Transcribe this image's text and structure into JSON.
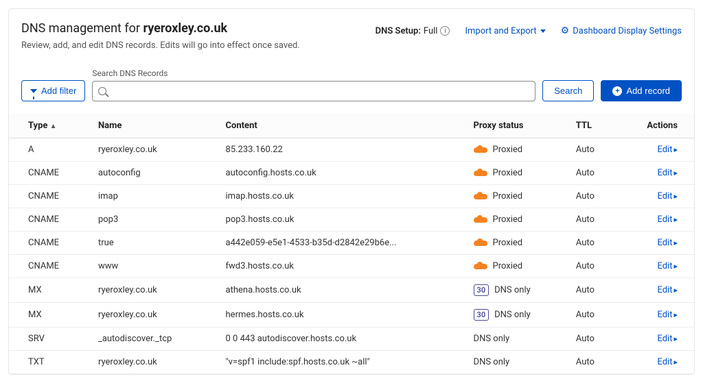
{
  "header": {
    "title_prefix": "DNS management for ",
    "domain": "ryeroxley.co.uk",
    "subtitle": "Review, add, and edit DNS records. Edits will go into effect once saved.",
    "dns_setup_label": "DNS Setup:",
    "dns_setup_value": "Full",
    "import_export": "Import and Export",
    "dashboard_settings": "Dashboard Display Settings"
  },
  "controls": {
    "add_filter": "Add filter",
    "search_label": "Search DNS Records",
    "search_btn": "Search",
    "add_record": "Add record"
  },
  "table": {
    "columns": {
      "type": "Type",
      "name": "Name",
      "content": "Content",
      "proxy": "Proxy status",
      "ttl": "TTL",
      "actions": "Actions"
    },
    "edit_label": "Edit",
    "proxy_labels": {
      "proxied": "Proxied",
      "dns_only": "DNS only"
    },
    "rows": [
      {
        "type": "A",
        "name": "ryeroxley.co.uk",
        "content": "85.233.160.22",
        "proxy": "proxied",
        "ttl": "Auto"
      },
      {
        "type": "CNAME",
        "name": "autoconfig",
        "content": "autoconfig.hosts.co.uk",
        "proxy": "proxied",
        "ttl": "Auto"
      },
      {
        "type": "CNAME",
        "name": "imap",
        "content": "imap.hosts.co.uk",
        "proxy": "proxied",
        "ttl": "Auto"
      },
      {
        "type": "CNAME",
        "name": "pop3",
        "content": "pop3.hosts.co.uk",
        "proxy": "proxied",
        "ttl": "Auto"
      },
      {
        "type": "CNAME",
        "name": "true",
        "content": "a442e059-e5e1-4533-b35d-d2842e29b6e...",
        "proxy": "proxied",
        "ttl": "Auto"
      },
      {
        "type": "CNAME",
        "name": "www",
        "content": "fwd3.hosts.co.uk",
        "proxy": "proxied",
        "ttl": "Auto"
      },
      {
        "type": "MX",
        "name": "ryeroxley.co.uk",
        "content": "athena.hosts.co.uk",
        "proxy": "dns_only",
        "ttl": "Auto",
        "priority": "30"
      },
      {
        "type": "MX",
        "name": "ryeroxley.co.uk",
        "content": "hermes.hosts.co.uk",
        "proxy": "dns_only",
        "ttl": "Auto",
        "priority": "30"
      },
      {
        "type": "SRV",
        "name": "_autodiscover._tcp",
        "content": "0 0 443 autodiscover.hosts.co.uk",
        "proxy": "dns_only",
        "ttl": "Auto"
      },
      {
        "type": "TXT",
        "name": "ryeroxley.co.uk",
        "content": "\"v=spf1 include:spf.hosts.co.uk ~all\"",
        "proxy": "dns_only",
        "ttl": "Auto"
      }
    ]
  },
  "colors": {
    "link": "#0051c3",
    "primary_bg": "#0051c3",
    "cloud": "#f6821f",
    "border": "#e6e6e6",
    "row_border": "#eee",
    "text": "#1d1d1d"
  }
}
